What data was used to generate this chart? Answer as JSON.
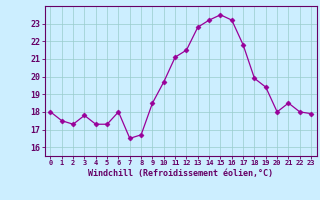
{
  "x": [
    0,
    1,
    2,
    3,
    4,
    5,
    6,
    7,
    8,
    9,
    10,
    11,
    12,
    13,
    14,
    15,
    16,
    17,
    18,
    19,
    20,
    21,
    22,
    23
  ],
  "y": [
    18.0,
    17.5,
    17.3,
    17.8,
    17.3,
    17.3,
    18.0,
    16.5,
    16.7,
    18.5,
    19.7,
    21.1,
    21.5,
    22.8,
    23.2,
    23.5,
    23.2,
    21.8,
    19.9,
    19.4,
    18.0,
    18.5,
    18.0,
    17.9
  ],
  "line_color": "#990099",
  "marker": "D",
  "marker_size": 2.5,
  "bg_color": "#cceeff",
  "grid_color": "#99cccc",
  "xlabel": "Windchill (Refroidissement éolien,°C)",
  "xlabel_color": "#660066",
  "tick_color": "#660066",
  "spine_color": "#660066",
  "ylim": [
    15.5,
    24.0
  ],
  "xlim": [
    -0.5,
    23.5
  ],
  "yticks": [
    16,
    17,
    18,
    19,
    20,
    21,
    22,
    23
  ],
  "xticks": [
    0,
    1,
    2,
    3,
    4,
    5,
    6,
    7,
    8,
    9,
    10,
    11,
    12,
    13,
    14,
    15,
    16,
    17,
    18,
    19,
    20,
    21,
    22,
    23
  ]
}
